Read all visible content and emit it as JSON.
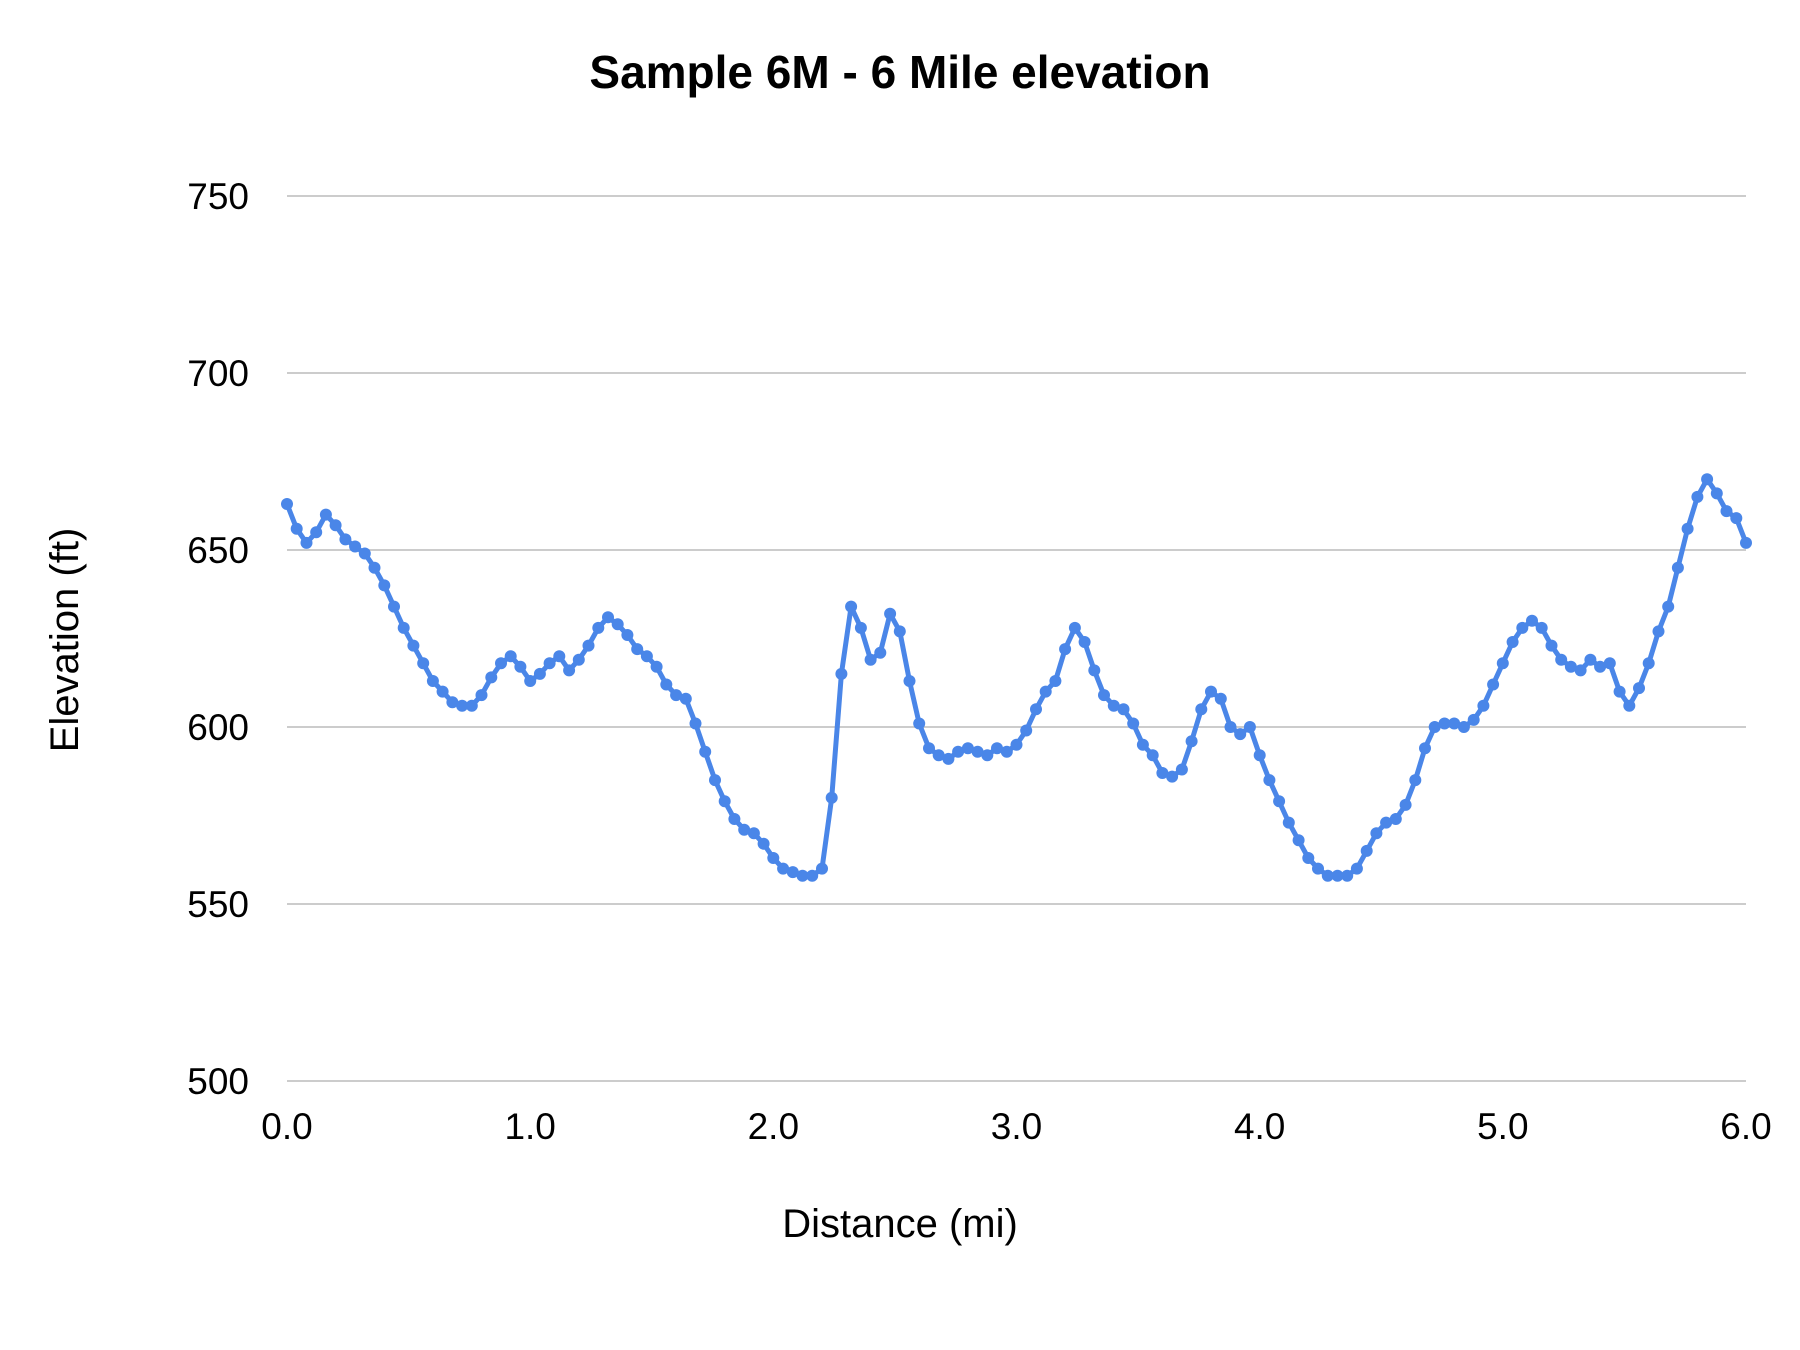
{
  "chart": {
    "title": "Sample 6M - 6 Mile elevation",
    "xlabel": "Distance (mi)",
    "ylabel": "Elevation (ft)"
  },
  "chart_data": {
    "type": "line",
    "title": "Sample 6M - 6 Mile elevation",
    "xlabel": "Distance (mi)",
    "ylabel": "Elevation (ft)",
    "x_ticks": [
      "0.0",
      "1.0",
      "2.0",
      "3.0",
      "4.0",
      "5.0",
      "6.0"
    ],
    "y_ticks": [
      500,
      550,
      600,
      650,
      700,
      750
    ],
    "xlim": [
      0,
      6
    ],
    "ylim": [
      500,
      750
    ],
    "grid": "horizontal",
    "legend": "none",
    "marker": "circle",
    "line_color": "#4a86e8",
    "grid_color": "#cccccc",
    "text_color": "#000000",
    "series": [
      {
        "x_start": 0.0,
        "x_step": 0.04,
        "values": [
          663,
          656,
          652,
          655,
          660,
          657,
          653,
          651,
          649,
          645,
          640,
          634,
          628,
          623,
          618,
          613,
          610,
          607,
          606,
          606,
          609,
          614,
          618,
          620,
          617,
          613,
          615,
          618,
          620,
          616,
          619,
          623,
          628,
          631,
          629,
          626,
          622,
          620,
          617,
          612,
          609,
          608,
          601,
          593,
          585,
          579,
          574,
          571,
          570,
          567,
          563,
          560,
          559,
          558,
          558,
          560,
          580,
          615,
          634,
          628,
          619,
          621,
          632,
          627,
          613,
          601,
          594,
          592,
          591,
          593,
          594,
          593,
          592,
          594,
          593,
          595,
          599,
          605,
          610,
          613,
          622,
          628,
          624,
          616,
          609,
          606,
          605,
          601,
          595,
          592,
          587,
          586,
          588,
          596,
          605,
          610,
          608,
          600,
          598,
          600,
          592,
          585,
          579,
          573,
          568,
          563,
          560,
          558,
          558,
          558,
          560,
          565,
          570,
          573,
          574,
          578,
          585,
          594,
          600,
          601,
          601,
          600,
          602,
          606,
          612,
          618,
          624,
          628,
          630,
          628,
          623,
          619,
          617,
          616,
          619,
          617,
          618,
          610,
          606,
          611,
          618,
          627,
          634,
          645,
          656,
          665,
          670,
          666,
          661,
          659,
          652
        ]
      }
    ]
  }
}
